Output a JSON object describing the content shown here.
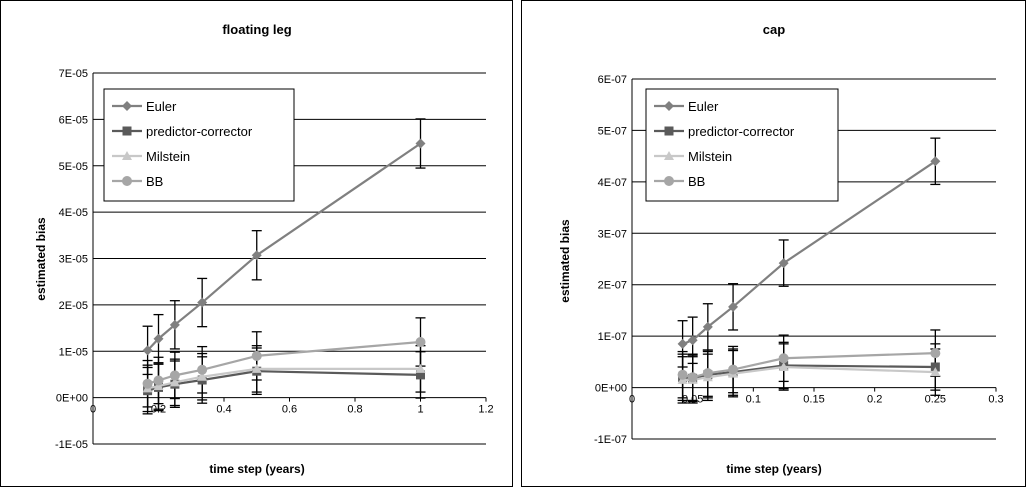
{
  "chart_data": [
    {
      "type": "line",
      "title": "floating leg",
      "xlabel": "time step (years)",
      "ylabel": "estimated bias",
      "xlim": [
        0,
        1.2
      ],
      "ylim": [
        -1e-05,
        7e-05
      ],
      "x_ticks": [
        "0",
        "0.2",
        "0.4",
        "0.6",
        "0.8",
        "1",
        "1.2"
      ],
      "y_ticks": [
        "-1E-05",
        "0E+00",
        "1E-05",
        "2E-05",
        "3E-05",
        "4E-05",
        "5E-05",
        "6E-05",
        "7E-05"
      ],
      "x": [
        0.1667,
        0.2,
        0.25,
        0.3333,
        0.5,
        1.0
      ],
      "grid": "horizontal",
      "legend_position": "top-left",
      "series": [
        {
          "name": "Euler",
          "color": "#808080",
          "marker": "diamond",
          "values": [
            1.02e-05,
            1.27e-05,
            1.57e-05,
            2.05e-05,
            3.07e-05,
            5.48e-05
          ],
          "errors": [
            5.2e-06,
            5.2e-06,
            5.2e-06,
            5.2e-06,
            5.3e-06,
            5.3e-06
          ]
        },
        {
          "name": "predictor-corrector",
          "color": "#5a5a5a",
          "marker": "square",
          "values": [
            1.5e-06,
            2.2e-06,
            2.9e-06,
            3.8e-06,
            5.7e-06,
            4.9e-06
          ],
          "errors": [
            5e-06,
            5e-06,
            5e-06,
            5e-06,
            5e-06,
            5e-06
          ]
        },
        {
          "name": "Milstein",
          "color": "#c8c8c8",
          "marker": "triangle",
          "values": [
            2e-06,
            2.5e-06,
            3.3e-06,
            4.5e-06,
            6.2e-06,
            6.2e-06
          ],
          "errors": [
            5e-06,
            5e-06,
            5e-06,
            5e-06,
            5e-06,
            5e-06
          ]
        },
        {
          "name": "BB",
          "color": "#a6a6a6",
          "marker": "circle",
          "values": [
            3e-06,
            3.7e-06,
            4.8e-06,
            6e-06,
            9e-06,
            1.2e-05
          ],
          "errors": [
            5e-06,
            5e-06,
            5e-06,
            5e-06,
            5.2e-06,
            5.2e-06
          ]
        }
      ]
    },
    {
      "type": "line",
      "title": "cap",
      "xlabel": "time step (years)",
      "ylabel": "estimated bias",
      "xlim": [
        0,
        0.3
      ],
      "ylim": [
        -1e-07,
        6e-07
      ],
      "x_ticks": [
        "0",
        "0.05",
        "0.1",
        "0.15",
        "0.2",
        "0.25",
        "0.3"
      ],
      "y_ticks": [
        "-1E-07",
        "0E+00",
        "1E-07",
        "2E-07",
        "3E-07",
        "4E-07",
        "5E-07",
        "6E-07"
      ],
      "x": [
        0.0417,
        0.05,
        0.0625,
        0.0833,
        0.125,
        0.25
      ],
      "grid": "horizontal",
      "legend_position": "top-left",
      "series": [
        {
          "name": "Euler",
          "color": "#808080",
          "marker": "diamond",
          "values": [
            8.5e-08,
            9.2e-08,
            1.18e-07,
            1.57e-07,
            2.42e-07,
            4.4e-07
          ],
          "errors": [
            4.5e-08,
            4.5e-08,
            4.5e-08,
            4.5e-08,
            4.5e-08,
            4.5e-08
          ]
        },
        {
          "name": "predictor-corrector",
          "color": "#5a5a5a",
          "marker": "square",
          "values": [
            2e-08,
            1.8e-08,
            2.5e-08,
            3e-08,
            4.3e-08,
            4e-08
          ],
          "errors": [
            4.5e-08,
            4.5e-08,
            4.5e-08,
            4.5e-08,
            4.5e-08,
            4.5e-08
          ]
        },
        {
          "name": "Milstein",
          "color": "#c8c8c8",
          "marker": "triangle",
          "values": [
            1.5e-08,
            1.5e-08,
            2e-08,
            2.7e-08,
            4e-08,
            3e-08
          ],
          "errors": [
            4.5e-08,
            4.5e-08,
            4.5e-08,
            4.5e-08,
            4.5e-08,
            4.5e-08
          ]
        },
        {
          "name": "BB",
          "color": "#a6a6a6",
          "marker": "circle",
          "values": [
            2.5e-08,
            2e-08,
            2.8e-08,
            3.5e-08,
            5.7e-08,
            6.7e-08
          ],
          "errors": [
            4.5e-08,
            4.5e-08,
            4.5e-08,
            4.5e-08,
            4.5e-08,
            4.5e-08
          ]
        }
      ]
    }
  ]
}
